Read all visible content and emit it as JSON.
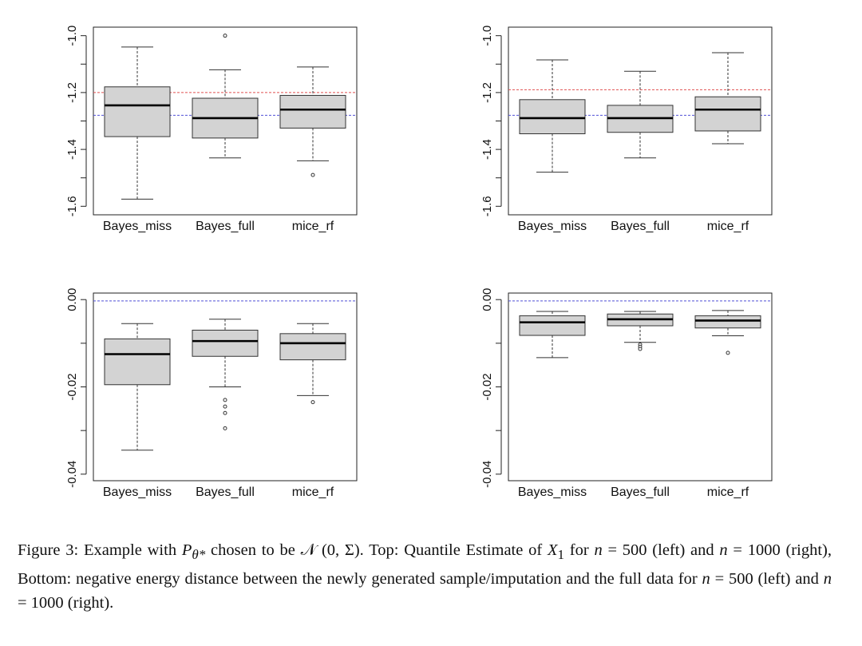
{
  "chart_data": [
    {
      "type": "boxplot",
      "panel": "top-left",
      "categories": [
        "Bayes_miss",
        "Bayes_full",
        "mice_rf"
      ],
      "ylim": [
        -1.63,
        -0.97
      ],
      "yticks": [
        -1.6,
        -1.4,
        -1.2,
        -1.0
      ],
      "ytick_labels": [
        "-1.6",
        "-1.4",
        "-1.2",
        "-1.0"
      ],
      "boxes": [
        {
          "name": "Bayes_miss",
          "whisker_low": -1.575,
          "q1": -1.355,
          "median": -1.245,
          "q3": -1.18,
          "whisker_high": -1.04,
          "outliers": []
        },
        {
          "name": "Bayes_full",
          "whisker_low": -1.43,
          "q1": -1.36,
          "median": -1.29,
          "q3": -1.22,
          "whisker_high": -1.12,
          "outliers": [
            -1.0
          ]
        },
        {
          "name": "mice_rf",
          "whisker_low": -1.44,
          "q1": -1.325,
          "median": -1.26,
          "q3": -1.21,
          "whisker_high": -1.11,
          "outliers": [
            -1.49
          ]
        }
      ],
      "reference_lines": [
        {
          "value": -1.2,
          "color": "#e05050"
        },
        {
          "value": -1.28,
          "color": "#5050d8"
        }
      ]
    },
    {
      "type": "boxplot",
      "panel": "top-right",
      "categories": [
        "Bayes_miss",
        "Bayes_full",
        "mice_rf"
      ],
      "ylim": [
        -1.63,
        -0.97
      ],
      "yticks": [
        -1.6,
        -1.4,
        -1.2,
        -1.0
      ],
      "ytick_labels": [
        "-1.6",
        "-1.4",
        "-1.2",
        "-1.0"
      ],
      "boxes": [
        {
          "name": "Bayes_miss",
          "whisker_low": -1.48,
          "q1": -1.345,
          "median": -1.29,
          "q3": -1.225,
          "whisker_high": -1.085,
          "outliers": []
        },
        {
          "name": "Bayes_full",
          "whisker_low": -1.43,
          "q1": -1.34,
          "median": -1.29,
          "q3": -1.245,
          "whisker_high": -1.125,
          "outliers": []
        },
        {
          "name": "mice_rf",
          "whisker_low": -1.38,
          "q1": -1.335,
          "median": -1.26,
          "q3": -1.215,
          "whisker_high": -1.06,
          "outliers": []
        }
      ],
      "reference_lines": [
        {
          "value": -1.19,
          "color": "#e05050"
        },
        {
          "value": -1.28,
          "color": "#5050d8"
        }
      ]
    },
    {
      "type": "boxplot",
      "panel": "bottom-left",
      "categories": [
        "Bayes_miss",
        "Bayes_full",
        "mice_rf"
      ],
      "ylim": [
        -0.0415,
        0.0015
      ],
      "yticks": [
        -0.04,
        -0.02,
        0.0
      ],
      "ytick_labels": [
        "-0.04",
        "-0.02",
        "0.00"
      ],
      "boxes": [
        {
          "name": "Bayes_miss",
          "whisker_low": -0.0345,
          "q1": -0.0195,
          "median": -0.0125,
          "q3": -0.009,
          "whisker_high": -0.0055,
          "outliers": []
        },
        {
          "name": "Bayes_full",
          "whisker_low": -0.02,
          "q1": -0.013,
          "median": -0.0095,
          "q3": -0.007,
          "whisker_high": -0.0045,
          "outliers": [
            -0.023,
            -0.0245,
            -0.026,
            -0.0295
          ]
        },
        {
          "name": "mice_rf",
          "whisker_low": -0.022,
          "q1": -0.0138,
          "median": -0.01,
          "q3": -0.0078,
          "whisker_high": -0.0055,
          "outliers": [
            -0.0235
          ]
        }
      ],
      "reference_lines": [
        {
          "value": -0.0003,
          "color": "#5050d8"
        }
      ]
    },
    {
      "type": "boxplot",
      "panel": "bottom-right",
      "categories": [
        "Bayes_miss",
        "Bayes_full",
        "mice_rf"
      ],
      "ylim": [
        -0.0415,
        0.0015
      ],
      "yticks": [
        -0.04,
        -0.02,
        0.0
      ],
      "ytick_labels": [
        "-0.04",
        "-0.02",
        "0.00"
      ],
      "boxes": [
        {
          "name": "Bayes_miss",
          "whisker_low": -0.0133,
          "q1": -0.0082,
          "median": -0.0052,
          "q3": -0.0037,
          "whisker_high": -0.0027,
          "outliers": []
        },
        {
          "name": "Bayes_full",
          "whisker_low": -0.0098,
          "q1": -0.006,
          "median": -0.0045,
          "q3": -0.0033,
          "whisker_high": -0.0027,
          "outliers": [
            -0.0103,
            -0.0108,
            -0.0113
          ]
        },
        {
          "name": "mice_rf",
          "whisker_low": -0.0083,
          "q1": -0.0065,
          "median": -0.0048,
          "q3": -0.0037,
          "whisker_high": -0.0025,
          "outliers": [
            -0.0122
          ]
        }
      ],
      "reference_lines": [
        {
          "value": -0.0003,
          "color": "#5050d8"
        }
      ]
    }
  ],
  "caption": {
    "label": "Figure 3:",
    "text_1": " Example with ",
    "P": "P",
    "theta_sub": "θ*",
    "text_2": " chosen to be ",
    "N": "𝒩",
    "dist_args": " (0, Σ).",
    "text_3": "  Top: Quantile Estimate of ",
    "X": "X",
    "x_sub": "1",
    "text_4": " for ",
    "n1": "n",
    "eq_500a": " = 500 (left) and ",
    "n2": "n",
    "eq_1000a": " = 1000 (right), Bottom: negative energy distance between the newly generated sample/imputation and the full data for ",
    "n3": "n",
    "eq_500b": " = 500 (left) and ",
    "n4": "n",
    "eq_1000b": " = 1000 (right)."
  },
  "colors": {
    "box_fill": "#d3d3d3",
    "axis": "#222222",
    "red_line": "#e05050",
    "blue_line": "#5050d8"
  }
}
